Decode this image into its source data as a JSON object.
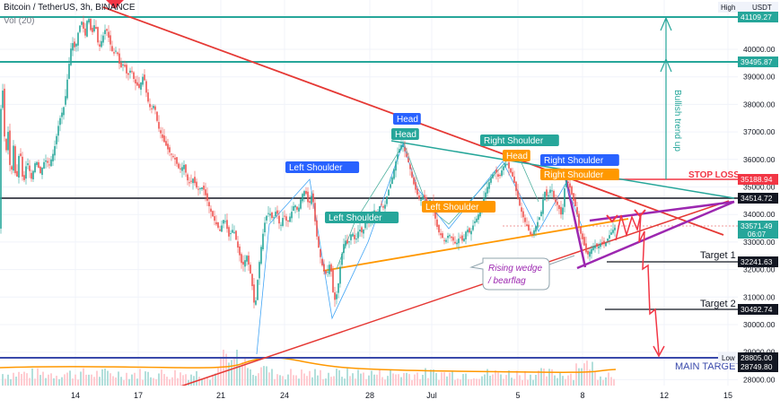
{
  "header": {
    "symbol_line": "Bitcoin / TetherUS, 3h, BINANCE",
    "volume_label": "Vol (20)"
  },
  "scale": {
    "high_label": "High",
    "currency": "USDT",
    "low_label": "Low"
  },
  "annotations": {
    "stop_loss": "STOP LOSS",
    "target1": "Target 1",
    "target2": "Target 2",
    "main_target": "MAIN TARGET",
    "bullish_trend": "Bullish trend up",
    "wedge_note": [
      "Rising wedge",
      "/ bearflag"
    ]
  },
  "chart_data": {
    "type": "candlestick",
    "title": "Bitcoin / TetherUS, 3h, BINANCE",
    "x_ticks": [
      "14",
      "17",
      "21",
      "24",
      "28",
      "Jul",
      "5",
      "8",
      "12",
      "15"
    ],
    "y_ticks": [
      28000,
      29000,
      30000,
      31000,
      32000,
      33000,
      34000,
      35000,
      36000,
      37000,
      38000,
      39000,
      40000
    ],
    "ylim": [
      27700,
      41800
    ],
    "price_levels": [
      {
        "label": "41109.27",
        "value": 41109.27,
        "color": "#26a69a"
      },
      {
        "label": "39495.87",
        "value": 39495.87,
        "color": "#26a69a"
      },
      {
        "label": "35188.94",
        "value": 35188.94,
        "color": "#f23645"
      },
      {
        "label": "34514.72",
        "value": 34514.72,
        "color": "#131722"
      },
      {
        "label": "33571.49",
        "value": 33571.49,
        "color": "#26a69a",
        "sub": "06:07"
      },
      {
        "label": "32241.63",
        "value": 32241.63,
        "color": "#131722"
      },
      {
        "label": "30492.74",
        "value": 30492.74,
        "color": "#131722"
      },
      {
        "label": "28805.00",
        "value": 28805.0,
        "color": "#131722"
      },
      {
        "label": "28749.80",
        "value": 28749.8,
        "color": "#131722"
      }
    ],
    "pattern_labels": [
      {
        "text": "Left Shoulder",
        "color": "#2962ff"
      },
      {
        "text": "Left Shoulder",
        "color": "#26a69a"
      },
      {
        "text": "Head",
        "color": "#2962ff"
      },
      {
        "text": "Head",
        "color": "#26a69a"
      },
      {
        "text": "Head",
        "color": "#ff9800"
      },
      {
        "text": "Left Shoulder",
        "color": "#ff9800"
      },
      {
        "text": "Right Shoulder",
        "color": "#26a69a"
      },
      {
        "text": "Right Shoulder",
        "color": "#2962ff"
      },
      {
        "text": "Right Shoulder",
        "color": "#ff9800"
      }
    ],
    "price_path": [
      [
        0,
        37500
      ],
      [
        3,
        38500
      ],
      [
        6,
        36000
      ],
      [
        9,
        37000
      ],
      [
        12,
        35200
      ],
      [
        15,
        36500
      ],
      [
        18,
        35000
      ],
      [
        22,
        36500
      ],
      [
        26,
        35000
      ],
      [
        30,
        36000
      ],
      [
        35,
        35300
      ],
      [
        40,
        36000
      ],
      [
        45,
        35500
      ],
      [
        50,
        36000
      ],
      [
        55,
        35800
      ],
      [
        60,
        36300
      ],
      [
        66,
        37400
      ],
      [
        72,
        38000
      ],
      [
        76,
        39200
      ],
      [
        80,
        40300
      ],
      [
        84,
        40000
      ],
      [
        88,
        40800
      ],
      [
        91,
        41000
      ],
      [
        95,
        40500
      ],
      [
        98,
        41300
      ],
      [
        102,
        40500
      ],
      [
        106,
        41000
      ],
      [
        110,
        40000
      ],
      [
        115,
        40500
      ],
      [
        118,
        40800
      ],
      [
        122,
        40300
      ],
      [
        126,
        39800
      ],
      [
        130,
        40000
      ],
      [
        134,
        39300
      ],
      [
        138,
        39500
      ],
      [
        142,
        39000
      ],
      [
        146,
        39300
      ],
      [
        150,
        38800
      ],
      [
        155,
        38600
      ],
      [
        160,
        39100
      ],
      [
        164,
        38200
      ],
      [
        168,
        37800
      ],
      [
        172,
        38000
      ],
      [
        176,
        37200
      ],
      [
        182,
        36700
      ],
      [
        188,
        36300
      ],
      [
        195,
        36000
      ],
      [
        200,
        35600
      ],
      [
        205,
        35800
      ],
      [
        210,
        35100
      ],
      [
        215,
        35300
      ],
      [
        220,
        34900
      ],
      [
        226,
        35000
      ],
      [
        232,
        34400
      ],
      [
        236,
        34000
      ],
      [
        240,
        33700
      ],
      [
        245,
        33400
      ],
      [
        250,
        33900
      ],
      [
        255,
        33200
      ],
      [
        260,
        33500
      ],
      [
        265,
        32800
      ],
      [
        270,
        32100
      ],
      [
        275,
        32500
      ],
      [
        280,
        31700
      ],
      [
        284,
        30500
      ],
      [
        288,
        32000
      ],
      [
        292,
        33100
      ],
      [
        296,
        33900
      ],
      [
        300,
        34100
      ],
      [
        304,
        33800
      ],
      [
        308,
        34200
      ],
      [
        312,
        33500
      ],
      [
        316,
        34000
      ],
      [
        320,
        33700
      ],
      [
        324,
        34000
      ],
      [
        328,
        34400
      ],
      [
        332,
        34100
      ],
      [
        336,
        34700
      ],
      [
        340,
        34900
      ],
      [
        344,
        34300
      ],
      [
        348,
        34800
      ],
      [
        352,
        33400
      ],
      [
        356,
        32600
      ],
      [
        360,
        32000
      ],
      [
        364,
        31800
      ],
      [
        368,
        32300
      ],
      [
        372,
        30800
      ],
      [
        376,
        31200
      ],
      [
        380,
        32400
      ],
      [
        384,
        33100
      ],
      [
        388,
        32900
      ],
      [
        392,
        33400
      ],
      [
        396,
        33000
      ],
      [
        400,
        33500
      ],
      [
        404,
        33300
      ],
      [
        408,
        33900
      ],
      [
        412,
        33700
      ],
      [
        416,
        34200
      ],
      [
        420,
        34000
      ],
      [
        424,
        34400
      ],
      [
        428,
        34200
      ],
      [
        432,
        34800
      ],
      [
        436,
        35200
      ],
      [
        440,
        35800
      ],
      [
        444,
        36300
      ],
      [
        448,
        36600
      ],
      [
        452,
        36200
      ],
      [
        456,
        35800
      ],
      [
        460,
        35200
      ],
      [
        464,
        34800
      ],
      [
        468,
        34500
      ],
      [
        472,
        34700
      ],
      [
        476,
        34300
      ],
      [
        480,
        34600
      ],
      [
        484,
        34000
      ],
      [
        488,
        33400
      ],
      [
        492,
        33200
      ],
      [
        496,
        33000
      ],
      [
        500,
        33300
      ],
      [
        504,
        33100
      ],
      [
        508,
        32900
      ],
      [
        512,
        33200
      ],
      [
        516,
        33000
      ],
      [
        520,
        33500
      ],
      [
        524,
        33300
      ],
      [
        528,
        33700
      ],
      [
        532,
        33900
      ],
      [
        536,
        34300
      ],
      [
        540,
        34700
      ],
      [
        544,
        35100
      ],
      [
        548,
        35400
      ],
      [
        552,
        35600
      ],
      [
        556,
        35300
      ],
      [
        560,
        35700
      ],
      [
        564,
        35900
      ],
      [
        568,
        35600
      ],
      [
        572,
        35300
      ],
      [
        576,
        34700
      ],
      [
        580,
        34200
      ],
      [
        584,
        33800
      ],
      [
        588,
        33500
      ],
      [
        592,
        33200
      ],
      [
        596,
        33500
      ],
      [
        600,
        33800
      ],
      [
        604,
        34200
      ],
      [
        606,
        34900
      ],
      [
        610,
        34600
      ],
      [
        614,
        35000
      ],
      [
        618,
        34500
      ],
      [
        622,
        34300
      ],
      [
        626,
        33900
      ],
      [
        630,
        35300
      ],
      [
        634,
        35100
      ],
      [
        638,
        34600
      ],
      [
        642,
        34200
      ],
      [
        646,
        33400
      ],
      [
        650,
        33000
      ],
      [
        654,
        32500
      ],
      [
        658,
        32700
      ],
      [
        662,
        32900
      ],
      [
        666,
        32800
      ],
      [
        670,
        33000
      ],
      [
        674,
        32900
      ],
      [
        678,
        33200
      ],
      [
        682,
        33400
      ],
      [
        686,
        33571.49
      ]
    ]
  },
  "colors": {
    "up": "#26a69a",
    "down": "#ef5350",
    "wedge": "#9c27b0",
    "trend": "#e53935",
    "support": "#ff9800"
  }
}
